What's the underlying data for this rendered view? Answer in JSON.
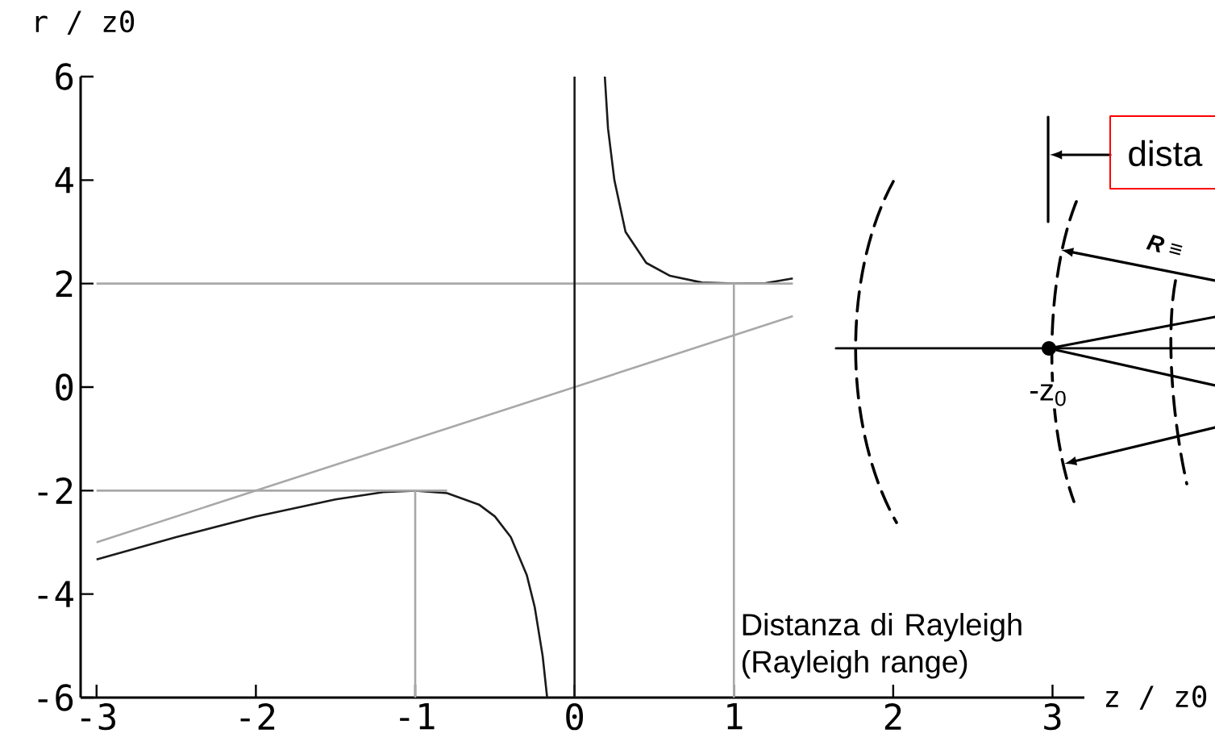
{
  "chart_data": {
    "type": "line",
    "xlabel": "z / z0",
    "ylabel": "r / z0",
    "xlim": [
      -3.1,
      3.2
    ],
    "ylim": [
      -6,
      6
    ],
    "xticks": [
      -3,
      -2,
      -1,
      0,
      1,
      2,
      3
    ],
    "yticks": [
      -6,
      -4,
      -2,
      0,
      2,
      4,
      6
    ],
    "marker": "none",
    "series": [
      {
        "color": "#1a1a1a",
        "x": [
          -3,
          -2.5,
          -2,
          -1.5,
          -1.2,
          -1,
          -0.8,
          -0.6,
          -0.5,
          -0.4,
          -0.3,
          -0.25,
          -0.2,
          -0.172
        ],
        "values": [
          -3.33,
          -2.9,
          -2.5,
          -2.17,
          -2.03,
          -2,
          -2.05,
          -2.27,
          -2.5,
          -2.9,
          -3.63,
          -4.25,
          -5.2,
          -6
        ]
      },
      {
        "color": "#1a1a1a",
        "x": [
          0.19,
          0.21,
          0.25,
          0.32,
          0.45,
          0.6,
          0.8,
          1,
          1.2,
          1.37
        ],
        "values": [
          6,
          5,
          4,
          3,
          2.4,
          2.15,
          2.02,
          2,
          2.01,
          2.1
        ]
      },
      {
        "color": "#a8a8a8",
        "x": [
          -3,
          1.37
        ],
        "values": [
          -3,
          1.37
        ]
      },
      {
        "color": "#a8a8a8",
        "x": [
          -3,
          1.37
        ],
        "values": [
          2,
          2
        ]
      },
      {
        "color": "#a8a8a8",
        "x": [
          -3,
          -0.8
        ],
        "values": [
          -2,
          -2
        ]
      },
      {
        "color": "#a8a8a8",
        "x": [
          -1,
          -1
        ],
        "values": [
          -6,
          -2
        ]
      },
      {
        "color": "#a8a8a8",
        "x": [
          1,
          1
        ],
        "values": [
          -6,
          2
        ]
      }
    ],
    "ref_lines": [
      {
        "axis": "x",
        "value": 0,
        "color": "#1a1a1a"
      }
    ],
    "annotations": [
      {
        "text": "Distanza di Rayleigh (Rayleigh range)",
        "x": 1,
        "y": -5
      },
      "dista",
      "-z$_{0}$",
      "R ≡"
    ]
  }
}
